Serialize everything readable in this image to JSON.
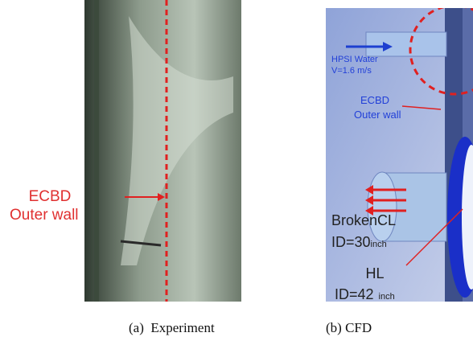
{
  "panels": [
    {
      "caption": "(a)  Experiment",
      "label": {
        "line1": "ECBD",
        "line2": "Outer wall"
      }
    },
    {
      "caption": "(b) CFD",
      "inlet": {
        "line1": "HPSI Water",
        "line2": "V=1.6 m/s"
      },
      "wall": {
        "line1": "ECBD",
        "line2": "Outer wall"
      },
      "broken": {
        "line1": "BrokenCL",
        "size": "ID=30",
        "unit": "inch"
      },
      "hot": {
        "line1": "HL",
        "size": "ID=42",
        "unit": "inch"
      }
    }
  ]
}
